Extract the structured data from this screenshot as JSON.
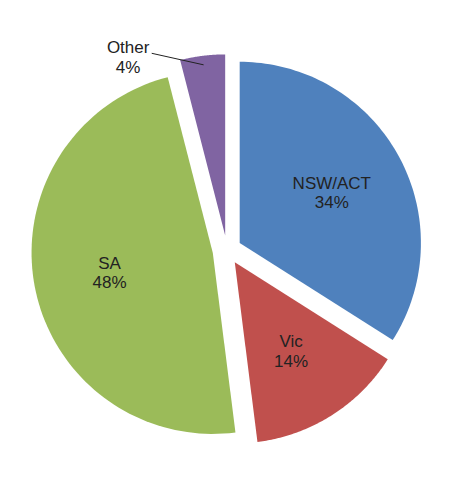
{
  "chart_data": {
    "type": "pie",
    "categories": [
      "NSW/ACT",
      "Vic",
      "SA",
      "Other"
    ],
    "values": [
      34,
      14,
      48,
      4
    ],
    "value_labels": [
      "34%",
      "14%",
      "48%",
      "4%"
    ],
    "colors": [
      "#4f81bd",
      "#c0504d",
      "#9bbb59",
      "#8064a2"
    ],
    "data_labels": true
  }
}
